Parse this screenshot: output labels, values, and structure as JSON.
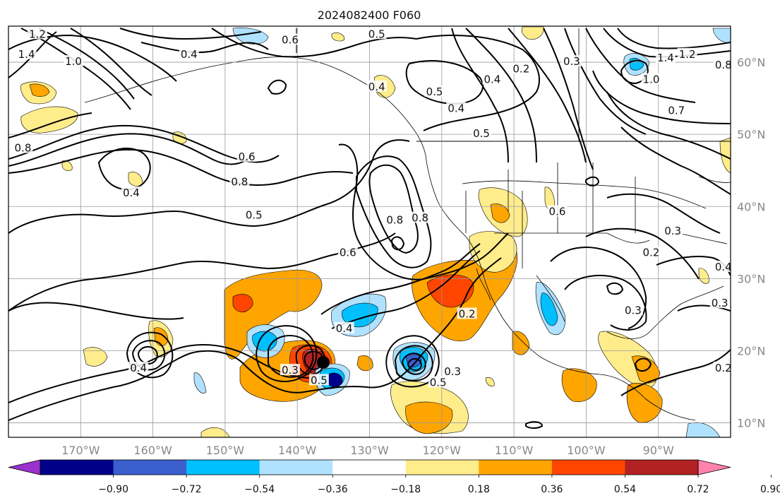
{
  "title": "2024082400 F060",
  "map": {
    "lon_range": [
      -180,
      -80
    ],
    "lat_range": [
      8,
      65
    ],
    "lon_ticks": [
      {
        "value": -170,
        "label": "170°W"
      },
      {
        "value": -160,
        "label": "160°W"
      },
      {
        "value": -150,
        "label": "150°W"
      },
      {
        "value": -140,
        "label": "140°W"
      },
      {
        "value": -130,
        "label": "130°W"
      },
      {
        "value": -120,
        "label": "120°W"
      },
      {
        "value": -110,
        "label": "110°W"
      },
      {
        "value": -100,
        "label": "100°W"
      },
      {
        "value": -90,
        "label": "90°W"
      }
    ],
    "lat_ticks": [
      {
        "value": 60,
        "label": "60°N"
      },
      {
        "value": 50,
        "label": "50°N"
      },
      {
        "value": 40,
        "label": "40°N"
      },
      {
        "value": 30,
        "label": "30°N"
      },
      {
        "value": 20,
        "label": "20°N"
      },
      {
        "value": 10,
        "label": "10°N"
      }
    ],
    "contour_labels": [
      {
        "lon": -176,
        "lat": 63.8,
        "text": "1.2"
      },
      {
        "lon": -177.5,
        "lat": 61.0,
        "text": "1.4"
      },
      {
        "lon": -171,
        "lat": 60.0,
        "text": "1.0"
      },
      {
        "lon": -155,
        "lat": 61.0,
        "text": "0.4"
      },
      {
        "lon": -141,
        "lat": 63.0,
        "text": "0.6"
      },
      {
        "lon": -129,
        "lat": 63.8,
        "text": "0.5"
      },
      {
        "lon": -129,
        "lat": 56.5,
        "text": "0.4"
      },
      {
        "lon": -121,
        "lat": 55.8,
        "text": "0.5"
      },
      {
        "lon": -113,
        "lat": 57.5,
        "text": "0.4"
      },
      {
        "lon": -109,
        "lat": 59.0,
        "text": "0.2"
      },
      {
        "lon": -102,
        "lat": 60.0,
        "text": "0.3"
      },
      {
        "lon": -89,
        "lat": 60.5,
        "text": "1.4"
      },
      {
        "lon": -86,
        "lat": 61.0,
        "text": "1.2"
      },
      {
        "lon": -91,
        "lat": 57.5,
        "text": "1.0"
      },
      {
        "lon": -81,
        "lat": 59.5,
        "text": "0.8"
      },
      {
        "lon": -87.5,
        "lat": 53.2,
        "text": "0.7"
      },
      {
        "lon": -118,
        "lat": 53.5,
        "text": "0.4"
      },
      {
        "lon": -114.5,
        "lat": 50.0,
        "text": "0.5"
      },
      {
        "lon": -178,
        "lat": 48.0,
        "text": "0.8"
      },
      {
        "lon": -147,
        "lat": 46.8,
        "text": "0.6"
      },
      {
        "lon": -148,
        "lat": 43.3,
        "text": "0.8"
      },
      {
        "lon": -163,
        "lat": 41.8,
        "text": "0.4"
      },
      {
        "lon": -146,
        "lat": 38.7,
        "text": "0.5"
      },
      {
        "lon": -126.5,
        "lat": 38.0,
        "text": "0.8"
      },
      {
        "lon": -123,
        "lat": 38.3,
        "text": "0.8"
      },
      {
        "lon": -133,
        "lat": 33.5,
        "text": "0.6"
      },
      {
        "lon": -104,
        "lat": 39.2,
        "text": "0.6"
      },
      {
        "lon": -88,
        "lat": 36.5,
        "text": "0.3"
      },
      {
        "lon": -91,
        "lat": 33.5,
        "text": "0.2"
      },
      {
        "lon": -81,
        "lat": 31.5,
        "text": "0.4"
      },
      {
        "lon": -81.5,
        "lat": 26.5,
        "text": "0.3"
      },
      {
        "lon": -93.5,
        "lat": 25.5,
        "text": "0.3"
      },
      {
        "lon": -116.5,
        "lat": 25.0,
        "text": "0.2"
      },
      {
        "lon": -133.5,
        "lat": 23.0,
        "text": "0.4"
      },
      {
        "lon": -162,
        "lat": 17.5,
        "text": "0.4"
      },
      {
        "lon": -141,
        "lat": 17.2,
        "text": "0.3"
      },
      {
        "lon": -137,
        "lat": 15.8,
        "text": "0.5"
      },
      {
        "lon": -120.5,
        "lat": 15.5,
        "text": "0.5"
      },
      {
        "lon": -118.5,
        "lat": 17.0,
        "text": "0.3"
      },
      {
        "lon": -81,
        "lat": 17.5,
        "text": "0.2"
      }
    ]
  },
  "colorbar": {
    "colors": [
      "#9a32cd",
      "#00008b",
      "#3a5fcd",
      "#00bfff",
      "#b0e2ff",
      "#ffffff",
      "#ffec8b",
      "#ffa500",
      "#ff4500",
      "#b22222",
      "#ff82ab"
    ],
    "ticks": [
      {
        "value": -0.9,
        "label": "−0.90"
      },
      {
        "value": -0.72,
        "label": "−0.72"
      },
      {
        "value": -0.54,
        "label": "−0.54"
      },
      {
        "value": -0.36,
        "label": "−0.36"
      },
      {
        "value": -0.18,
        "label": "−0.18"
      },
      {
        "value": 0.18,
        "label": "0.18"
      },
      {
        "value": 0.36,
        "label": "0.36"
      },
      {
        "value": 0.54,
        "label": "0.54"
      },
      {
        "value": 0.72,
        "label": "0.72"
      },
      {
        "value": 0.9,
        "label": "0.90"
      }
    ]
  }
}
